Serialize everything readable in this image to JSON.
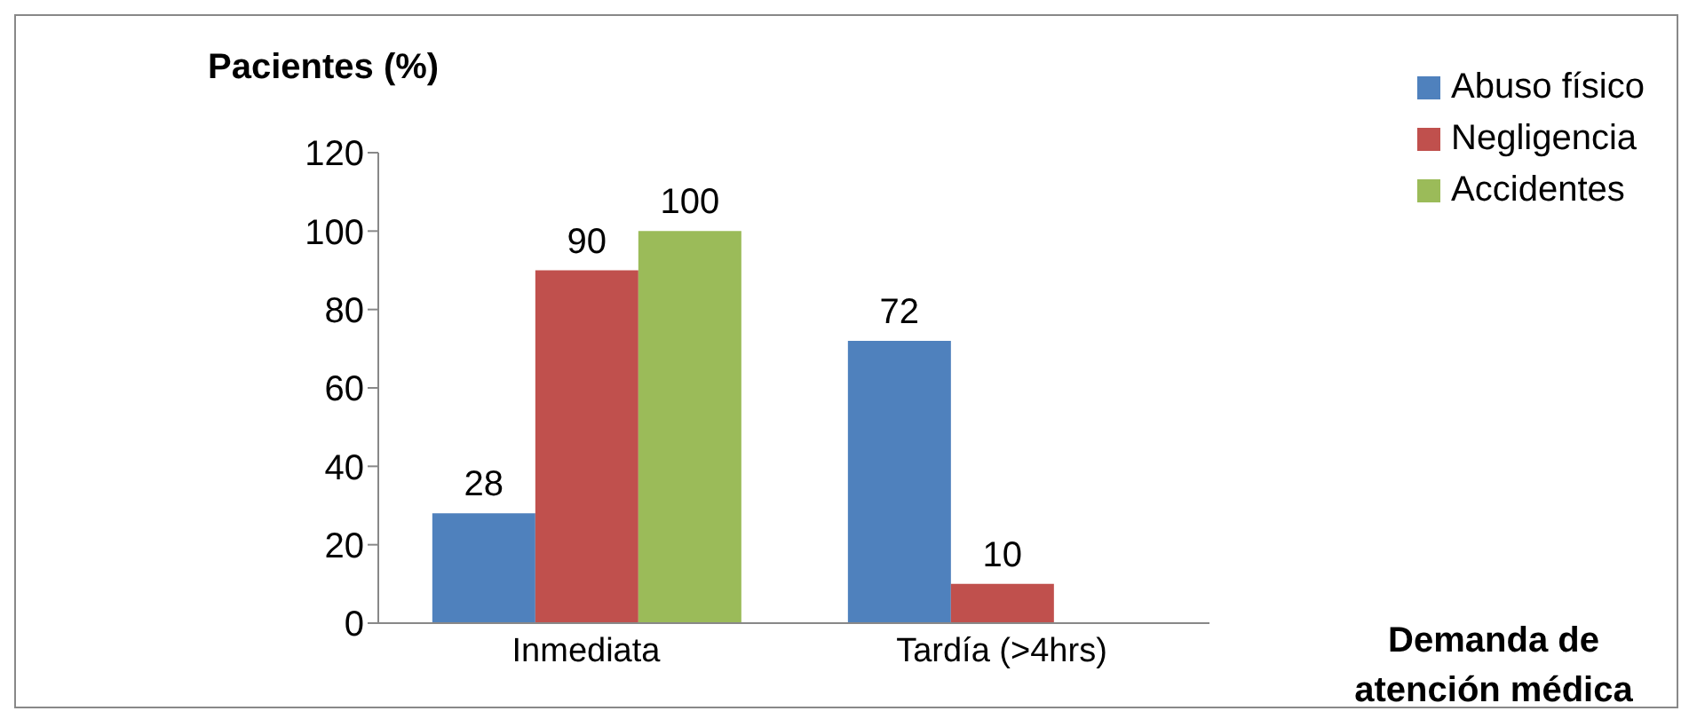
{
  "chart_data": {
    "type": "bar",
    "ylabel": "Pacientes (%)",
    "xlabel": "Demanda de atención médica",
    "categories": [
      "Inmediata",
      "Tardía (>4hrs)"
    ],
    "series": [
      {
        "name": "Abuso físico",
        "color": "#4f81bd",
        "values": [
          28,
          72
        ]
      },
      {
        "name": "Negligencia",
        "color": "#c0504d",
        "values": [
          90,
          10
        ]
      },
      {
        "name": "Accidentes",
        "color": "#9bbb59",
        "values": [
          100,
          null
        ]
      }
    ],
    "ylim": [
      0,
      120
    ],
    "yticks": [
      0,
      20,
      40,
      60,
      80,
      100,
      120
    ],
    "grid": false,
    "legend": "top right",
    "data_labels": true
  }
}
